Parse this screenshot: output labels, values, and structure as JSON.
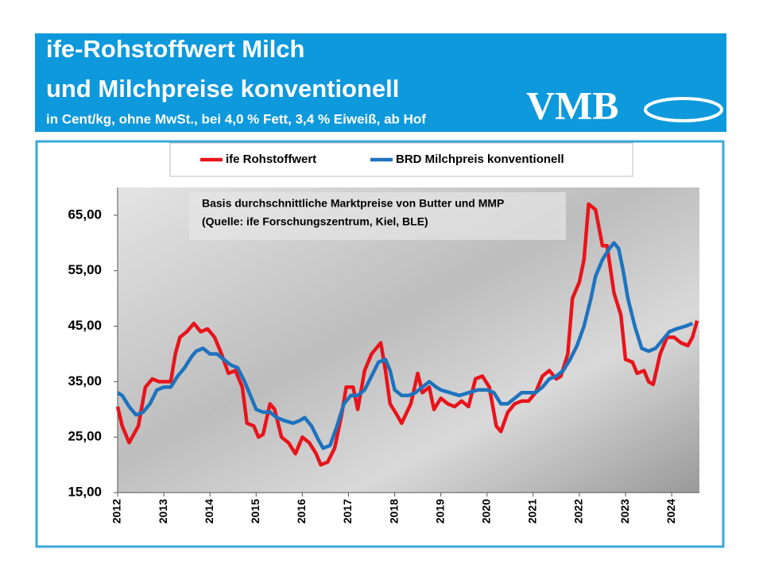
{
  "chart_data": {
    "type": "line",
    "title": "ife-Rohstoffwert Milch",
    "title_line2": "und Milchpreise konventionell",
    "subtitle": "in Cent/kg, ohne MwSt., bei 4,0 % Fett, 3,4 % Eiweiß, ab Hof",
    "logo": "VMB",
    "annotation": [
      "Basis durchschnittliche Marktpreise von Butter und MMP",
      "(Quelle: ife Forschungszentrum, Kiel, BLE)"
    ],
    "xlim": [
      2012,
      2024.6
    ],
    "xticks": [
      2012,
      2013,
      2014,
      2015,
      2016,
      2017,
      2018,
      2019,
      2020,
      2021,
      2022,
      2023,
      2024
    ],
    "ylim": [
      15,
      70
    ],
    "yticks": [
      {
        "value": 15,
        "label": "15,00"
      },
      {
        "value": 25,
        "label": "25,00"
      },
      {
        "value": 35,
        "label": "35,00"
      },
      {
        "value": 45,
        "label": "45,00"
      },
      {
        "value": 55,
        "label": "55,00"
      },
      {
        "value": 65,
        "label": "65,00"
      }
    ],
    "series": [
      {
        "name": "ife Rohstoffwert",
        "color": "#e8141b",
        "x": [
          2012.0,
          2012.1,
          2012.25,
          2012.45,
          2012.6,
          2012.75,
          2012.9,
          2013.0,
          2013.15,
          2013.25,
          2013.35,
          2013.5,
          2013.65,
          2013.8,
          2013.95,
          2014.1,
          2014.25,
          2014.4,
          2014.55,
          2014.7,
          2014.8,
          2014.95,
          2015.05,
          2015.15,
          2015.3,
          2015.4,
          2015.55,
          2015.7,
          2015.85,
          2016.0,
          2016.15,
          2016.3,
          2016.4,
          2016.55,
          2016.7,
          2016.85,
          2016.95,
          2017.1,
          2017.2,
          2017.35,
          2017.5,
          2017.7,
          2017.8,
          2017.9,
          2018.05,
          2018.15,
          2018.35,
          2018.5,
          2018.6,
          2018.75,
          2018.85,
          2019.0,
          2019.15,
          2019.3,
          2019.45,
          2019.6,
          2019.75,
          2019.9,
          2020.05,
          2020.2,
          2020.3,
          2020.45,
          2020.6,
          2020.75,
          2020.9,
          2021.05,
          2021.2,
          2021.35,
          2021.5,
          2021.6,
          2021.75,
          2021.85,
          2022.0,
          2022.1,
          2022.2,
          2022.35,
          2022.5,
          2022.6,
          2022.75,
          2022.9,
          2023.0,
          2023.15,
          2023.25,
          2023.4,
          2023.5,
          2023.6,
          2023.75,
          2023.9,
          2024.05,
          2024.2,
          2024.35,
          2024.45,
          2024.55
        ],
        "values": [
          30.5,
          27,
          24,
          27,
          34,
          35.5,
          35,
          35,
          35,
          40,
          43,
          44,
          45.5,
          44,
          44.5,
          43,
          40,
          36.5,
          37,
          34,
          27.5,
          27,
          25,
          25.5,
          31,
          30,
          25,
          24,
          22,
          25,
          24,
          22,
          20,
          20.5,
          23,
          29,
          34,
          34,
          30,
          37,
          40,
          42,
          37,
          31,
          29,
          27.5,
          31,
          36.5,
          33,
          34,
          30,
          32,
          31,
          30.5,
          31.5,
          30.5,
          35.5,
          36,
          34,
          27,
          26,
          29.5,
          31,
          31.5,
          31.5,
          33,
          36,
          37,
          35.5,
          36,
          40,
          50,
          53,
          57,
          67,
          66,
          59.5,
          59.5,
          51,
          47,
          39,
          38.5,
          36.5,
          37,
          35,
          34.5,
          40,
          43,
          43,
          42,
          41.5,
          43,
          46
        ]
      },
      {
        "name": "BRD Milchpreis konventionell",
        "color": "#1e73be",
        "x": [
          2012.0,
          2012.1,
          2012.25,
          2012.4,
          2012.55,
          2012.7,
          2012.85,
          2013.0,
          2013.15,
          2013.3,
          2013.45,
          2013.6,
          2013.7,
          2013.85,
          2014.0,
          2014.15,
          2014.3,
          2014.45,
          2014.6,
          2014.75,
          2014.9,
          2015.0,
          2015.15,
          2015.3,
          2015.45,
          2015.6,
          2015.8,
          2015.95,
          2016.05,
          2016.2,
          2016.35,
          2016.45,
          2016.6,
          2016.75,
          2016.9,
          2017.05,
          2017.2,
          2017.35,
          2017.5,
          2017.65,
          2017.8,
          2017.9,
          2018.0,
          2018.15,
          2018.3,
          2018.45,
          2018.6,
          2018.75,
          2018.9,
          2019.0,
          2019.2,
          2019.4,
          2019.6,
          2019.8,
          2020.0,
          2020.15,
          2020.3,
          2020.45,
          2020.6,
          2020.75,
          2020.9,
          2021.05,
          2021.2,
          2021.35,
          2021.5,
          2021.65,
          2021.8,
          2021.95,
          2022.1,
          2022.25,
          2022.35,
          2022.5,
          2022.65,
          2022.75,
          2022.85,
          2022.95,
          2023.05,
          2023.2,
          2023.35,
          2023.5,
          2023.65,
          2023.8,
          2023.95,
          2024.1,
          2024.3,
          2024.45
        ],
        "values": [
          33,
          32.5,
          30.5,
          29,
          29.5,
          31,
          33.5,
          34,
          34,
          36,
          37.5,
          39.5,
          40.5,
          41,
          40,
          40,
          39,
          38,
          37.5,
          35,
          32,
          30,
          29.5,
          29.5,
          28.5,
          28,
          27.5,
          28,
          28.5,
          27,
          24.5,
          23,
          23.5,
          27,
          31,
          32.5,
          32.5,
          33.5,
          36,
          38.5,
          39,
          37,
          33.5,
          32.5,
          32.5,
          33,
          34,
          35,
          34,
          33.5,
          33,
          32.5,
          33,
          33.5,
          33.5,
          33,
          31,
          31,
          32,
          33,
          33,
          33,
          34,
          35.5,
          36,
          37,
          39,
          41.5,
          45,
          50,
          54,
          57,
          59,
          60,
          59,
          55,
          50,
          45,
          41,
          40.5,
          41,
          42.5,
          44,
          44.5,
          45,
          45.5
        ]
      }
    ]
  }
}
